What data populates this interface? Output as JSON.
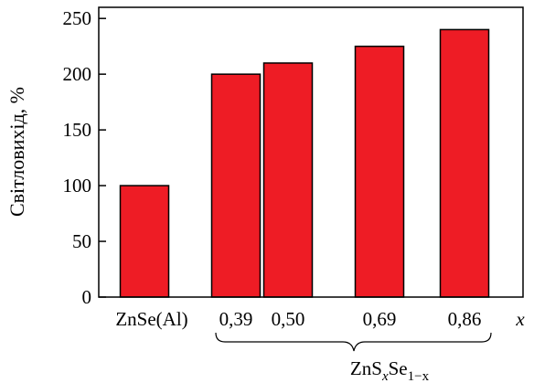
{
  "chart_data": {
    "type": "bar",
    "ylabel": "Світловихід, %",
    "xlabel_var": "x",
    "ylim": [
      0,
      260
    ],
    "yticks": [
      0,
      50,
      100,
      150,
      200,
      250
    ],
    "categories": [
      "ZnSe(Al)",
      "0,39",
      "0,50",
      "0,69",
      "0,86"
    ],
    "x_positions": [
      null,
      0.39,
      0.5,
      0.69,
      0.86
    ],
    "values": [
      100,
      200,
      210,
      225,
      240
    ],
    "bar_color": "#ee1c25",
    "group_label": {
      "base1": "ZnS",
      "sub1": "x",
      "base2": "Se",
      "sub2": "1−x"
    },
    "grid": false,
    "legend": "none"
  }
}
